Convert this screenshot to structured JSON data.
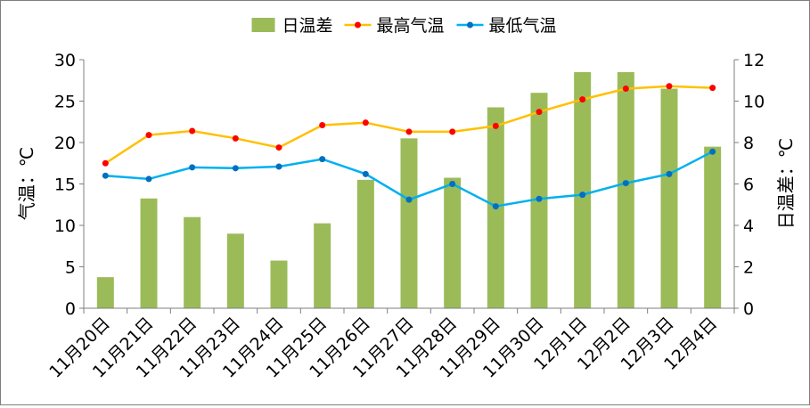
{
  "chart_data": {
    "type": "bar+line",
    "categories": [
      "11月20日",
      "11月21日",
      "11月22日",
      "11月23日",
      "11月24日",
      "11月25日",
      "11月26日",
      "11月27日",
      "11月28日",
      "11月29日",
      "11月30日",
      "12月1日",
      "12月2日",
      "12月3日",
      "12月4日"
    ],
    "series": [
      {
        "name": "日温差",
        "type": "bar",
        "axis": "right",
        "color": "#9bbb59",
        "values": [
          1.5,
          5.3,
          4.4,
          3.6,
          2.3,
          4.1,
          6.2,
          8.2,
          6.3,
          9.7,
          10.4,
          11.4,
          11.4,
          10.6,
          7.8
        ]
      },
      {
        "name": "最高气温",
        "type": "line",
        "axis": "left",
        "color": "#ffc000",
        "marker_color": "#ff0000",
        "values": [
          17.5,
          20.9,
          21.4,
          20.5,
          19.4,
          22.1,
          22.4,
          21.3,
          21.3,
          22.0,
          23.7,
          25.2,
          26.5,
          26.8,
          26.6
        ]
      },
      {
        "name": "最低气温",
        "type": "line",
        "axis": "left",
        "color": "#00b0f0",
        "marker_color": "#0070c0",
        "values": [
          16.0,
          15.6,
          17.0,
          16.9,
          17.1,
          18.0,
          16.2,
          13.1,
          15.0,
          12.3,
          13.2,
          13.7,
          15.1,
          16.2,
          18.9
        ]
      }
    ],
    "y_left": {
      "label": "气温：℃",
      "min": 0,
      "max": 30,
      "ticks": [
        0,
        5,
        10,
        15,
        20,
        25,
        30
      ]
    },
    "y_right": {
      "label": "日温差：℃",
      "min": 0,
      "max": 12,
      "ticks": [
        0,
        2,
        4,
        6,
        8,
        10,
        12
      ]
    },
    "legend_position": "top",
    "grid": false
  }
}
